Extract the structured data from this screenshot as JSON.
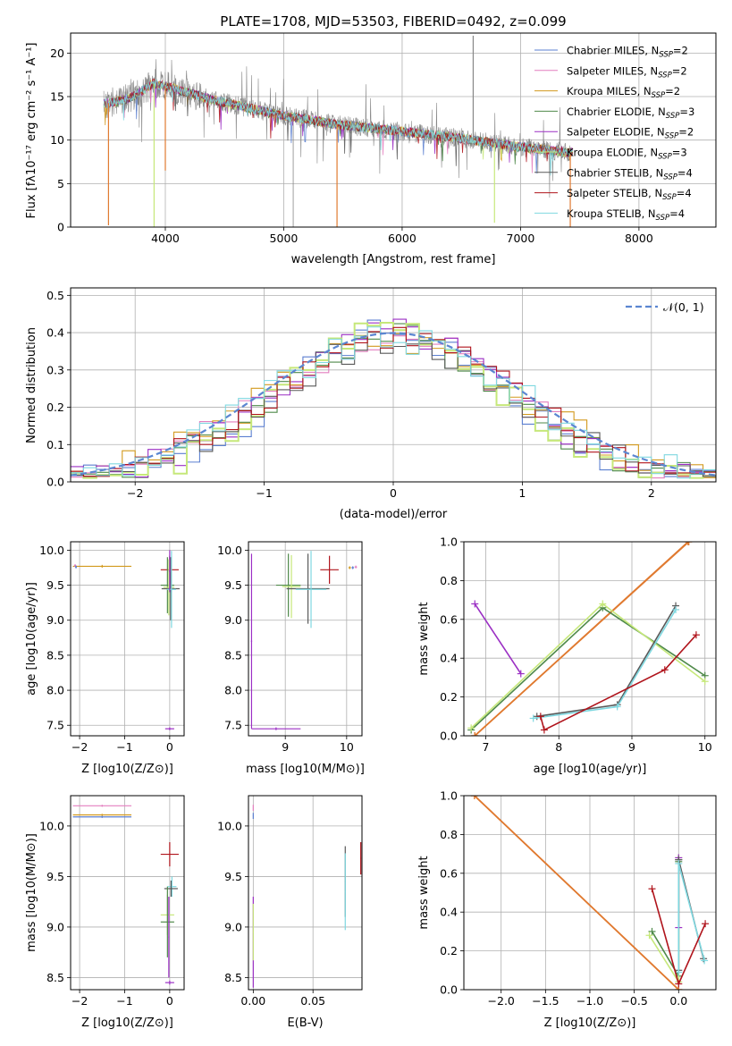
{
  "title": "PLATE=1708, MJD=53503, FIBERID=0492, z=0.099",
  "colors": {
    "Chabrier MILES": "#5b7fd0",
    "Salpeter MILES": "#e47fbf",
    "Kroupa MILES": "#d39a1e",
    "Chabrier ELODIE": "#4f8a4a",
    "Salpeter ELODIE": "#9b2fc4",
    "Kroupa ELODIE": "#c6e87a",
    "Chabrier STELIB": "#595959",
    "Salpeter STELIB": "#b0141c",
    "Kroupa STELIB": "#7fd8e0",
    "data": "#888888",
    "orange": "#e07a30",
    "normal": "#5b86d1",
    "grid": "#b0b0b0"
  },
  "chart_data": [
    {
      "type": "line",
      "panel": "spectrum",
      "xlabel": "wavelength [Angstrom, rest frame]",
      "ylabel": "Flux [f_λ10^-17 erg cm^-2 s^-1 A^-1]",
      "xlim": [
        3200,
        8650
      ],
      "ylim": [
        0,
        22.3
      ],
      "xticks": [
        4000,
        5000,
        6000,
        7000,
        8000
      ],
      "yticks": [
        0,
        5,
        10,
        15,
        20
      ],
      "legend_position": "top-right",
      "legend": [
        "Chabrier MILES, N_SSP=2",
        "Salpeter MILES, N_SSP=2",
        "Kroupa MILES, N_SSP=2",
        "Chabrier ELODIE, N_SSP=3",
        "Salpeter ELODIE, N_SSP=2",
        "Kroupa ELODIE, N_SSP=3",
        "Chabrier STELIB, N_SSP=4",
        "Salpeter STELIB, N_SSP=4",
        "Kroupa STELIB, N_SSP=4"
      ],
      "continuum": {
        "x": [
          3500,
          3700,
          3900,
          4000,
          4100,
          4300,
          4500,
          5000,
          5500,
          6000,
          6500,
          7000,
          7400
        ],
        "y": [
          14.2,
          14.8,
          16.5,
          16.2,
          15.8,
          15.0,
          14.3,
          12.8,
          11.7,
          11.0,
          10.2,
          9.2,
          8.6
        ]
      },
      "spikes": [
        {
          "x": 3520,
          "y": 0.2
        },
        {
          "x": 3905,
          "y": 0.0
        },
        {
          "x": 4000,
          "y": 6.5
        },
        {
          "x": 5450,
          "y": 0.0
        },
        {
          "x": 6600,
          "y": 22.0
        },
        {
          "x": 6780,
          "y": 0.5
        },
        {
          "x": 7420,
          "y": 0.0
        }
      ]
    },
    {
      "type": "line",
      "panel": "residual histogram",
      "xlabel": "(data-model)/error",
      "ylabel": "Normed distribution",
      "xlim": [
        -2.5,
        2.5
      ],
      "ylim": [
        0,
        0.52
      ],
      "xticks": [
        -2,
        -1,
        0,
        1,
        2
      ],
      "yticks": [
        0.0,
        0.1,
        0.2,
        0.3,
        0.4,
        0.5
      ],
      "legend_position": "top-right",
      "legend": [
        "N(0,1)"
      ],
      "bin_width": 0.1,
      "bin_start": -2.5,
      "series": [
        {
          "name": "Chabrier MILES",
          "peak": 0.4,
          "width": 0.85,
          "seed": 1
        },
        {
          "name": "Salpeter MILES",
          "peak": 0.39,
          "width": 0.95,
          "seed": 2
        },
        {
          "name": "Kroupa MILES",
          "peak": 0.38,
          "width": 1.0,
          "seed": 3
        },
        {
          "name": "Chabrier ELODIE",
          "peak": 0.39,
          "width": 0.9,
          "seed": 4
        },
        {
          "name": "Salpeter ELODIE",
          "peak": 0.4,
          "width": 0.9,
          "seed": 5
        },
        {
          "name": "Kroupa ELODIE",
          "peak": 0.42,
          "width": 0.82,
          "seed": 6
        },
        {
          "name": "Chabrier STELIB",
          "peak": 0.37,
          "width": 0.95,
          "seed": 7
        },
        {
          "name": "Salpeter STELIB",
          "peak": 0.39,
          "width": 0.95,
          "seed": 8
        },
        {
          "name": "Kroupa STELIB",
          "peak": 0.38,
          "width": 1.0,
          "seed": 9
        }
      ]
    },
    {
      "type": "scatter",
      "panel": "age vs Z",
      "xlabel": "Z [log10(Z/Z⊙)]",
      "ylabel": "age  [log10(age/yr)]",
      "xlim": [
        -2.2,
        0.32
      ],
      "ylim": [
        7.35,
        10.12
      ],
      "xticks": [
        -2,
        -1,
        0
      ],
      "yticks": [
        7.5,
        8.0,
        8.5,
        9.0,
        9.5,
        10.0
      ],
      "points": [
        {
          "s": "Kroupa MILES",
          "x": -1.5,
          "y": 9.77,
          "xe": 0.65,
          "ye": 0.02
        },
        {
          "s": "Salpeter MILES",
          "x": -2.1,
          "y": 9.78,
          "xe": 0.02,
          "ye": 0.02
        },
        {
          "s": "Chabrier MILES",
          "x": -2.08,
          "y": 9.76,
          "xe": 0.02,
          "ye": 0.02
        },
        {
          "s": "Salpeter STELIB",
          "x": 0.0,
          "y": 9.72,
          "xe": 0.2,
          "ye": 0.2
        },
        {
          "s": "Chabrier ELODIE",
          "x": -0.05,
          "y": 9.5,
          "xe": 0.15,
          "ye": 0.4
        },
        {
          "s": "Kroupa ELODIE",
          "x": -0.02,
          "y": 9.47,
          "xe": 0.12,
          "ye": 0.4
        },
        {
          "s": "Chabrier STELIB",
          "x": 0.02,
          "y": 9.45,
          "xe": 0.2,
          "ye": 0.45
        },
        {
          "s": "Kroupa STELIB",
          "x": 0.04,
          "y": 9.44,
          "xe": 0.1,
          "ye": 0.55
        },
        {
          "s": "Salpeter ELODIE",
          "x": 0.0,
          "y": 9.7,
          "xe": 0.02,
          "ye": 0.3
        },
        {
          "s": "Salpeter ELODIE",
          "x": 0.0,
          "y": 7.45,
          "xe": 0.1,
          "ye": 0.02
        }
      ]
    },
    {
      "type": "scatter",
      "panel": "age vs mass",
      "xlabel": "mass [log10(M/M⊙)]",
      "ylabel": "",
      "xlim": [
        8.4,
        10.25
      ],
      "ylim": [
        7.35,
        10.12
      ],
      "xticks": [
        9,
        10
      ],
      "yticks": [
        7.5,
        8.0,
        8.5,
        9.0,
        9.5,
        10.0
      ],
      "points": [
        {
          "s": "Salpeter ELODIE",
          "x": 8.85,
          "y": 7.45,
          "xe": 0.4,
          "ye": 0.02
        },
        {
          "s": "Salpeter ELODIE",
          "x": 8.45,
          "y": 8.7,
          "xe": 0.01,
          "ye": 1.25
        },
        {
          "s": "Chabrier ELODIE",
          "x": 9.05,
          "y": 9.5,
          "xe": 0.2,
          "ye": 0.45
        },
        {
          "s": "Kroupa ELODIE",
          "x": 9.1,
          "y": 9.48,
          "xe": 0.15,
          "ye": 0.45
        },
        {
          "s": "Chabrier STELIB",
          "x": 9.37,
          "y": 9.45,
          "xe": 0.35,
          "ye": 0.5
        },
        {
          "s": "Kroupa STELIB",
          "x": 9.42,
          "y": 9.44,
          "xe": 0.25,
          "ye": 0.55
        },
        {
          "s": "Salpeter STELIB",
          "x": 9.72,
          "y": 9.72,
          "xe": 0.15,
          "ye": 0.2
        },
        {
          "s": "Salpeter MILES",
          "x": 10.15,
          "y": 9.76,
          "xe": 0.02,
          "ye": 0.02
        },
        {
          "s": "Chabrier MILES",
          "x": 10.1,
          "y": 9.75,
          "xe": 0.02,
          "ye": 0.02
        },
        {
          "s": "Kroupa MILES",
          "x": 10.05,
          "y": 9.75,
          "xe": 0.02,
          "ye": 0.02
        }
      ]
    },
    {
      "type": "line",
      "panel": "mass weight vs age",
      "xlabel": "age  [log10(age/yr)]",
      "ylabel": "mass weight",
      "xlim": [
        6.7,
        10.15
      ],
      "ylim": [
        0,
        1
      ],
      "xticks": [
        7,
        8,
        9,
        10
      ],
      "yticks": [
        0.0,
        0.2,
        0.4,
        0.6,
        0.8,
        1.0
      ],
      "series": [
        {
          "name": "Chabrier MILES",
          "x": [
            6.85,
            9.77
          ],
          "y": [
            0.0,
            1.0
          ]
        },
        {
          "name": "Salpeter MILES",
          "x": [
            6.85,
            9.78
          ],
          "y": [
            0.0,
            1.0
          ]
        },
        {
          "name": "Kroupa MILES",
          "x": [
            6.85,
            9.77
          ],
          "y": [
            0.0,
            1.0
          ]
        },
        {
          "name": "Chabrier ELODIE",
          "x": [
            6.8,
            8.6,
            10.0
          ],
          "y": [
            0.03,
            0.66,
            0.31
          ]
        },
        {
          "name": "Kroupa ELODIE",
          "x": [
            6.8,
            8.6,
            10.0
          ],
          "y": [
            0.04,
            0.68,
            0.28
          ]
        },
        {
          "name": "Salpeter ELODIE",
          "x": [
            6.85,
            7.48
          ],
          "y": [
            0.68,
            0.32
          ]
        },
        {
          "name": "Chabrier STELIB",
          "x": [
            7.7,
            8.8,
            9.6
          ],
          "y": [
            0.1,
            0.16,
            0.67
          ]
        },
        {
          "name": "Kroupa STELIB",
          "x": [
            7.65,
            8.8,
            9.6
          ],
          "y": [
            0.09,
            0.15,
            0.65
          ]
        },
        {
          "name": "Salpeter STELIB",
          "x": [
            7.75,
            7.8,
            9.45,
            9.88
          ],
          "y": [
            0.1,
            0.03,
            0.34,
            0.52
          ]
        }
      ]
    },
    {
      "type": "scatter",
      "panel": "mass vs Z",
      "xlabel": "Z [log10(Z/Z⊙)]",
      "ylabel": "mass [log10(M/M⊙)]",
      "xlim": [
        -2.2,
        0.32
      ],
      "ylim": [
        8.38,
        10.3
      ],
      "xticks": [
        -2,
        -1,
        0
      ],
      "yticks": [
        8.5,
        9.0,
        9.5,
        10.0
      ],
      "points": [
        {
          "s": "Salpeter MILES",
          "x": -1.5,
          "y": 10.2,
          "xe": 0.65,
          "ye": 0.01
        },
        {
          "s": "Kroupa MILES",
          "x": -1.5,
          "y": 10.11,
          "xe": 0.65,
          "ye": 0.01
        },
        {
          "s": "Chabrier MILES",
          "x": -1.5,
          "y": 10.09,
          "xe": 0.65,
          "ye": 0.01
        },
        {
          "s": "Salpeter STELIB",
          "x": 0.0,
          "y": 9.72,
          "xe": 0.2,
          "ye": 0.12
        },
        {
          "s": "Kroupa STELIB",
          "x": 0.05,
          "y": 9.4,
          "xe": 0.1,
          "ye": 0.1
        },
        {
          "s": "Chabrier STELIB",
          "x": 0.03,
          "y": 9.38,
          "xe": 0.15,
          "ye": 0.08
        },
        {
          "s": "Kroupa ELODIE",
          "x": -0.05,
          "y": 9.12,
          "xe": 0.15,
          "ye": 0.2
        },
        {
          "s": "Chabrier ELODIE",
          "x": -0.05,
          "y": 9.05,
          "xe": 0.15,
          "ye": 0.35
        },
        {
          "s": "Salpeter ELODIE",
          "x": 0.0,
          "y": 8.45,
          "xe": 0.1,
          "ye": 0.02
        },
        {
          "s": "Salpeter ELODIE",
          "x": -0.02,
          "y": 8.9,
          "xe": 0.01,
          "ye": 0.4
        }
      ]
    },
    {
      "type": "scatter",
      "panel": "mass vs E(B-V)",
      "xlabel": "E(B-V)",
      "ylabel": "",
      "xlim": [
        -0.004,
        0.091
      ],
      "ylim": [
        8.38,
        10.3
      ],
      "xticks": [
        0.0,
        0.05
      ],
      "yticks": [
        8.5,
        9.0,
        9.5,
        10.0
      ],
      "points": [
        {
          "s": "Salpeter MILES",
          "x": 0.0,
          "y": 10.18,
          "xe": 0.0003,
          "ye": 0.03
        },
        {
          "s": "Chabrier MILES",
          "x": 0.0,
          "y": 10.1,
          "xe": 0.0003,
          "ye": 0.03
        },
        {
          "s": "Salpeter ELODIE",
          "x": 0.0,
          "y": 8.85,
          "xe": 0.0003,
          "ye": 0.45
        },
        {
          "s": "Kroupa ELODIE",
          "x": 0.0,
          "y": 8.95,
          "xe": 0.0003,
          "ye": 0.28
        },
        {
          "s": "Chabrier STELIB",
          "x": 0.077,
          "y": 9.45,
          "xe": 0.0003,
          "ye": 0.35
        },
        {
          "s": "Kroupa STELIB",
          "x": 0.077,
          "y": 9.35,
          "xe": 0.0003,
          "ye": 0.38
        },
        {
          "s": "Salpeter STELIB",
          "x": 0.09,
          "y": 9.68,
          "xe": 0.0003,
          "ye": 0.16
        }
      ]
    },
    {
      "type": "line",
      "panel": "mass weight vs Z",
      "xlabel": "Z [log10(Z/Z⊙)]",
      "ylabel": "mass weight",
      "xlim": [
        -2.42,
        0.42
      ],
      "ylim": [
        0,
        1
      ],
      "xticks": [
        -2.0,
        -1.5,
        -1.0,
        -0.5,
        0.0
      ],
      "yticks": [
        0.0,
        0.2,
        0.4,
        0.6,
        0.8,
        1.0
      ],
      "series": [
        {
          "name": "Chabrier MILES",
          "x": [
            -2.3,
            0.0
          ],
          "y": [
            1.0,
            0.0
          ]
        },
        {
          "name": "Salpeter MILES",
          "x": [
            -2.3,
            0.0
          ],
          "y": [
            1.0,
            0.0
          ]
        },
        {
          "name": "Kroupa MILES",
          "x": [
            -2.3,
            0.0
          ],
          "y": [
            1.0,
            0.0
          ]
        },
        {
          "name": "Chabrier ELODIE",
          "x": [
            -0.3,
            0.0,
            0.0
          ],
          "y": [
            0.3,
            0.07,
            0.66
          ]
        },
        {
          "name": "Kroupa ELODIE",
          "x": [
            -0.33,
            0.0,
            0.0
          ],
          "y": [
            0.28,
            0.04,
            0.68
          ]
        },
        {
          "name": "Salpeter ELODIE",
          "x": [
            0.0,
            0.0
          ],
          "y": [
            0.32,
            0.68
          ]
        },
        {
          "name": "Chabrier STELIB",
          "x": [
            0.0,
            0.0,
            0.0,
            0.28
          ],
          "y": [
            0.1,
            0.67,
            0.67,
            0.16
          ]
        },
        {
          "name": "Kroupa STELIB",
          "x": [
            0.0,
            0.0,
            0.29
          ],
          "y": [
            0.09,
            0.65,
            0.15
          ]
        },
        {
          "name": "Salpeter STELIB",
          "x": [
            -0.3,
            0.0,
            0.3
          ],
          "y": [
            0.52,
            0.03,
            0.34
          ]
        }
      ]
    }
  ]
}
